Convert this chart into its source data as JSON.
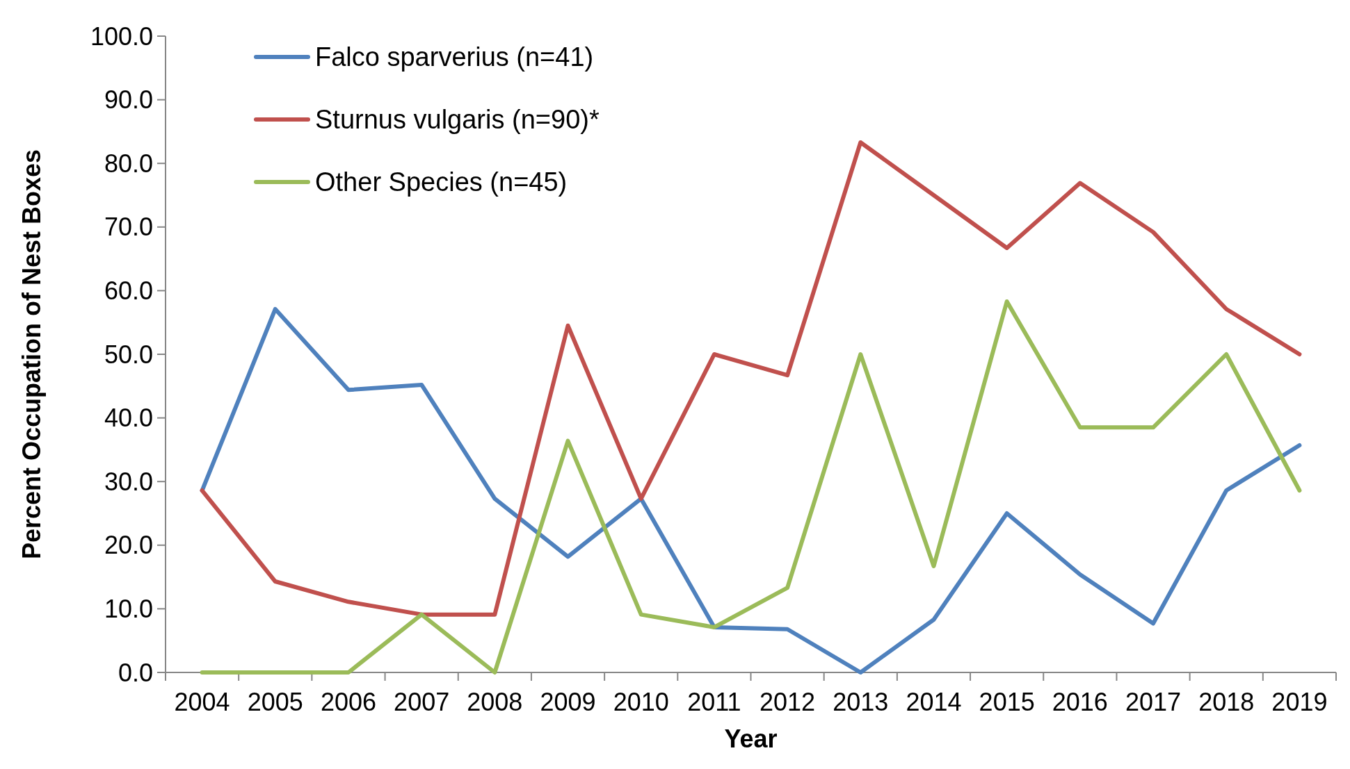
{
  "chart_data": {
    "type": "line",
    "xlabel": "Year",
    "ylabel": "Percent Occupation of Nest Boxes",
    "categories": [
      "2004",
      "2005",
      "2006",
      "2007",
      "2008",
      "2009",
      "2010",
      "2011",
      "2012",
      "2013",
      "2014",
      "2015",
      "2016",
      "2017",
      "2018",
      "2019"
    ],
    "series": [
      {
        "name": "Falco sparverius (n=41)",
        "color": "#4f81bd",
        "values": [
          28.6,
          57.1,
          44.4,
          45.2,
          27.3,
          18.2,
          27.3,
          7.1,
          6.8,
          0,
          8.3,
          25.0,
          15.4,
          7.7,
          28.6,
          35.7
        ]
      },
      {
        "name": "Sturnus vulgaris (n=90)*",
        "color": "#c0504d",
        "values": [
          28.6,
          14.3,
          11.1,
          9.1,
          9.1,
          54.5,
          27.3,
          50.0,
          46.7,
          83.3,
          75.0,
          66.7,
          76.9,
          69.2,
          57.1,
          50.0
        ]
      },
      {
        "name": "Other Species (n=45)",
        "color": "#9bbb59",
        "values": [
          0,
          0,
          0,
          9.1,
          0,
          36.4,
          9.1,
          7.1,
          13.3,
          50.0,
          16.7,
          58.3,
          38.5,
          38.5,
          50.0,
          28.6
        ]
      }
    ],
    "ylim": [
      0,
      100
    ],
    "yticks": [
      {
        "value": 0,
        "label": "0.0"
      },
      {
        "value": 10,
        "label": "10.0"
      },
      {
        "value": 20,
        "label": "20.0"
      },
      {
        "value": 30,
        "label": "30.0"
      },
      {
        "value": 40,
        "label": "40.0"
      },
      {
        "value": 50,
        "label": "50.0"
      },
      {
        "value": 60,
        "label": "60.0"
      },
      {
        "value": 70,
        "label": "70.0"
      },
      {
        "value": 80,
        "label": "80.0"
      },
      {
        "value": 90,
        "label": "90.0"
      },
      {
        "value": 100,
        "label": "100.0"
      }
    ],
    "grid": false,
    "legend": "top left",
    "marker": "none",
    "line_style": "solid"
  }
}
